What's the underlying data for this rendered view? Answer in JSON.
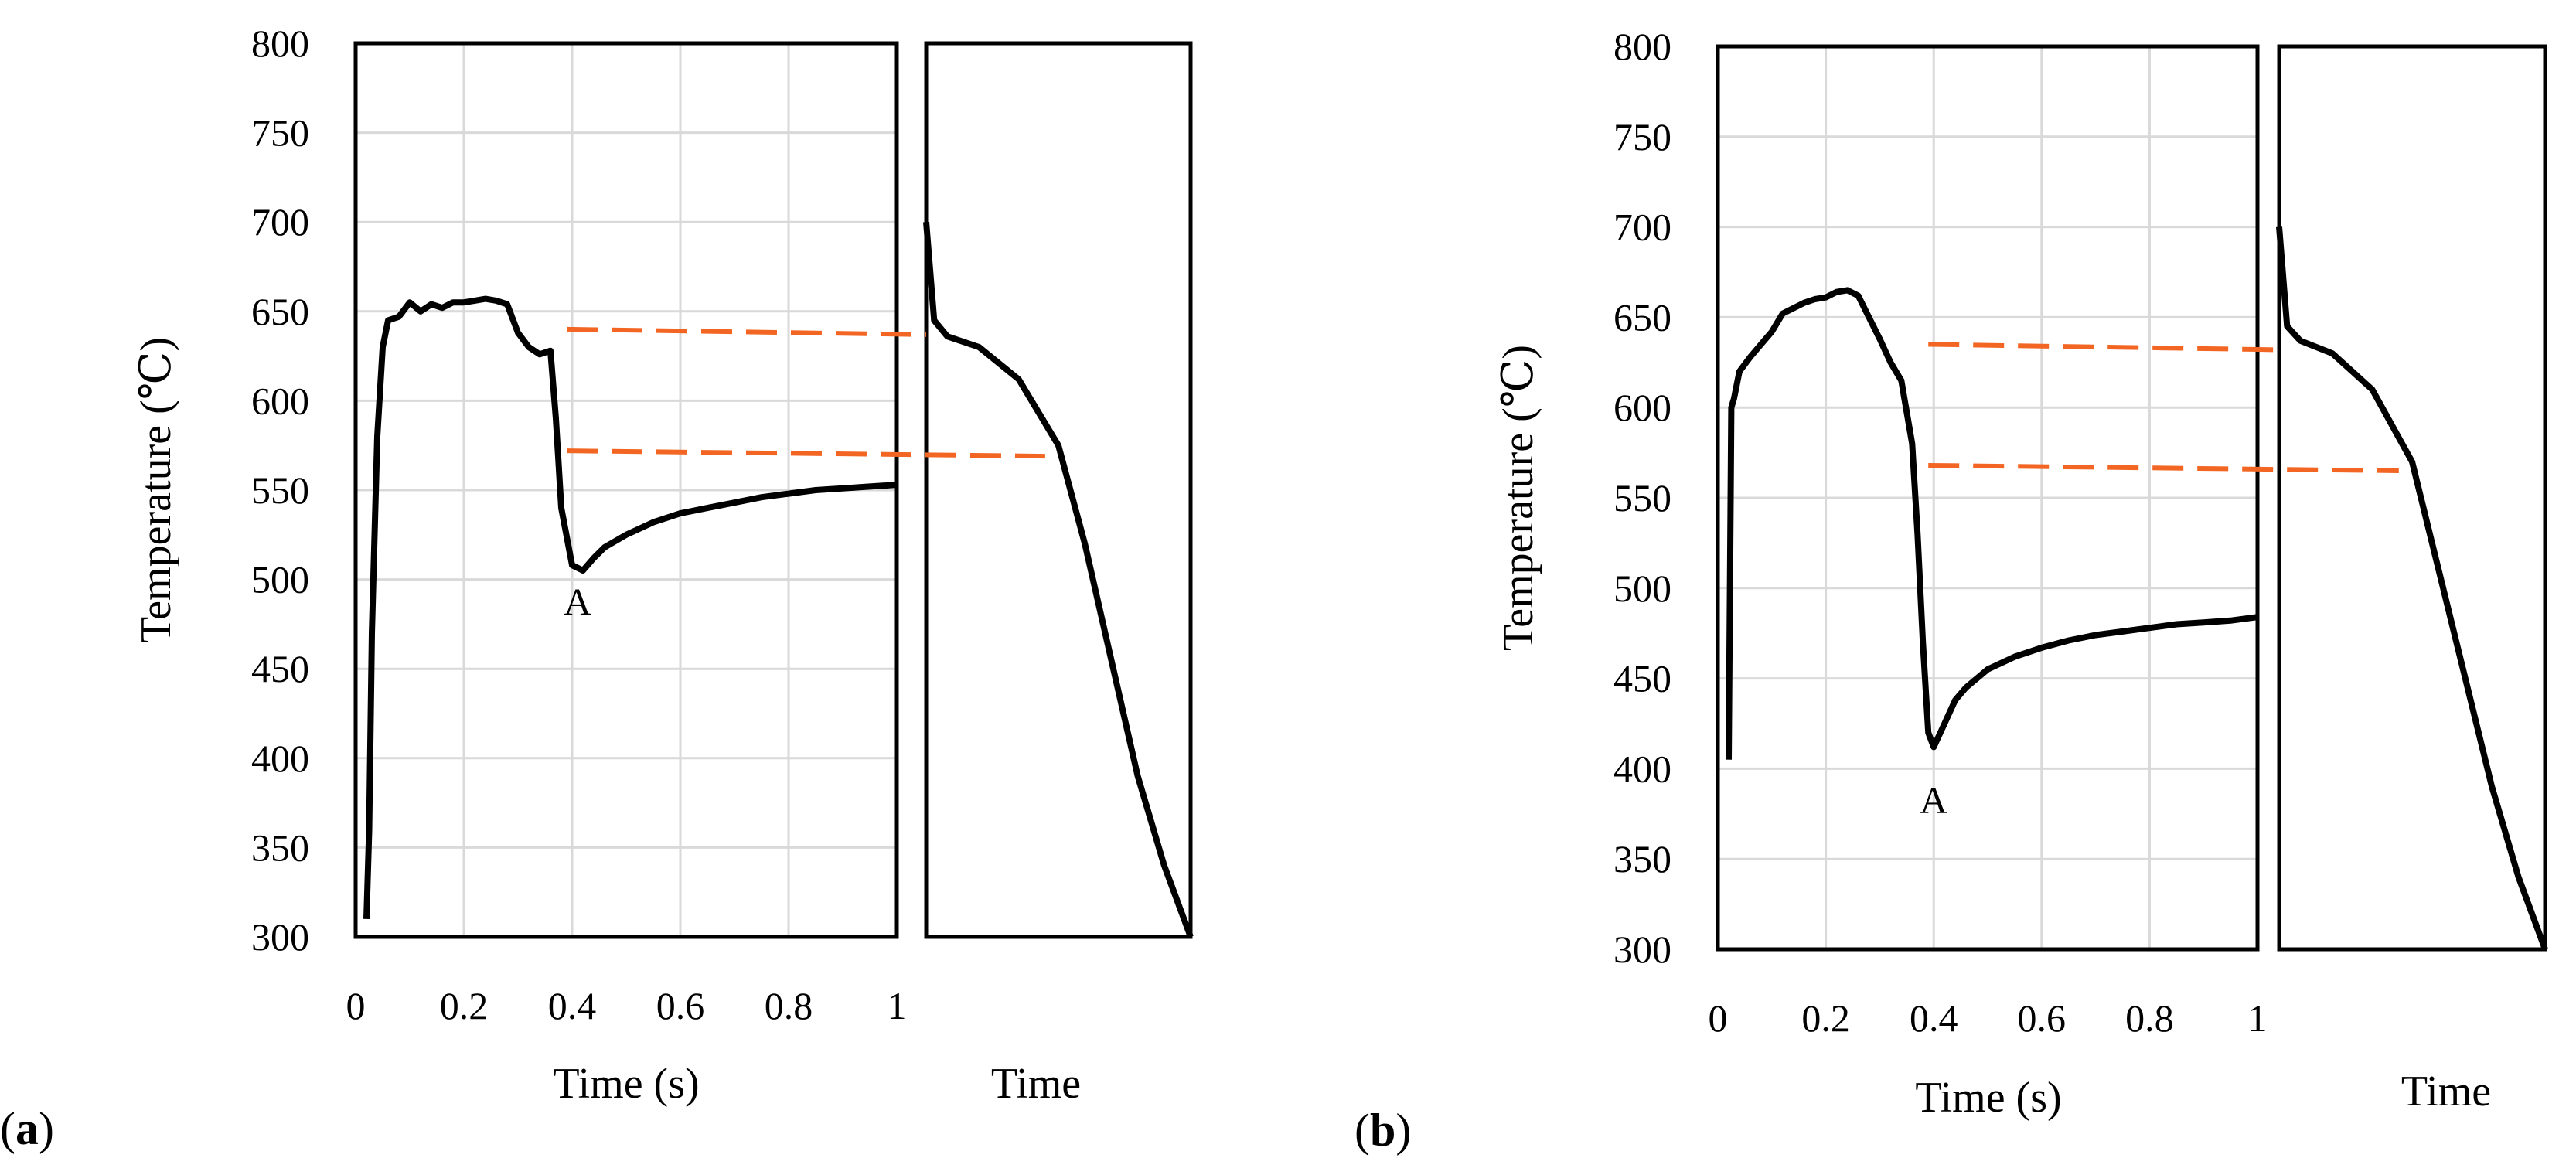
{
  "colors": {
    "line": "#000000",
    "reference": "#F26522",
    "grid": "#D9D9D9",
    "frame": "#000000"
  },
  "chart_data": [
    {
      "panel_label": "a",
      "type": "line",
      "xlabel": "Time (s)",
      "ylabel": "Temperature (℃)",
      "xlim": [
        0,
        1
      ],
      "ylim": [
        300,
        800
      ],
      "x_ticks": [
        "0",
        "0.2",
        "0.4",
        "0.6",
        "0.8",
        "1"
      ],
      "y_ticks": [
        "300",
        "350",
        "400",
        "450",
        "500",
        "550",
        "600",
        "650",
        "700",
        "750",
        "800"
      ],
      "grid": true,
      "series": [
        {
          "name": "temperature",
          "x": [
            0.02,
            0.025,
            0.03,
            0.04,
            0.05,
            0.06,
            0.08,
            0.1,
            0.12,
            0.14,
            0.16,
            0.18,
            0.2,
            0.22,
            0.24,
            0.26,
            0.28,
            0.3,
            0.32,
            0.34,
            0.36,
            0.37,
            0.38,
            0.4,
            0.42,
            0.44,
            0.46,
            0.5,
            0.55,
            0.6,
            0.65,
            0.7,
            0.75,
            0.8,
            0.85,
            0.9,
            0.95,
            1.0
          ],
          "y": [
            310,
            360,
            470,
            580,
            630,
            645,
            647,
            655,
            650,
            654,
            652,
            655,
            655,
            656,
            657,
            656,
            654,
            638,
            630,
            626,
            628,
            590,
            540,
            508,
            505,
            512,
            518,
            525,
            532,
            537,
            540,
            543,
            546,
            548,
            550,
            551,
            552,
            553
          ]
        }
      ],
      "annotations": [
        {
          "text": "A",
          "x": 0.41,
          "y": 488
        }
      ],
      "right_panel": {
        "xlabel": "Time",
        "curve": [
          [
            0.0,
            700
          ],
          [
            0.03,
            645
          ],
          [
            0.08,
            636
          ],
          [
            0.2,
            630
          ],
          [
            0.35,
            612
          ],
          [
            0.5,
            575
          ],
          [
            0.6,
            520
          ],
          [
            0.7,
            455
          ],
          [
            0.8,
            390
          ],
          [
            0.9,
            340
          ],
          [
            1.0,
            300
          ]
        ],
        "reference_lines": [
          {
            "left_y": 640,
            "right_y": 637,
            "start_x": 0.39,
            "end_frac": 0.0
          },
          {
            "left_y": 572,
            "right_y": 569,
            "start_x": 0.39,
            "end_frac": 0.45
          }
        ]
      }
    },
    {
      "panel_label": "b",
      "type": "line",
      "xlabel": "Time (s)",
      "ylabel": "Temperature (℃)",
      "xlim": [
        0,
        1
      ],
      "ylim": [
        300,
        800
      ],
      "x_ticks": [
        "0",
        "0.2",
        "0.4",
        "0.6",
        "0.8",
        "1"
      ],
      "y_ticks": [
        "300",
        "350",
        "400",
        "450",
        "500",
        "550",
        "600",
        "650",
        "700",
        "750",
        "800"
      ],
      "grid": true,
      "series": [
        {
          "name": "temperature",
          "x": [
            0.02,
            0.025,
            0.03,
            0.04,
            0.06,
            0.08,
            0.1,
            0.12,
            0.14,
            0.16,
            0.18,
            0.2,
            0.22,
            0.24,
            0.26,
            0.28,
            0.3,
            0.32,
            0.34,
            0.36,
            0.37,
            0.38,
            0.39,
            0.4,
            0.42,
            0.44,
            0.46,
            0.5,
            0.55,
            0.6,
            0.65,
            0.7,
            0.75,
            0.8,
            0.85,
            0.9,
            0.95,
            1.0
          ],
          "y": [
            405,
            600,
            605,
            620,
            628,
            635,
            642,
            652,
            655,
            658,
            660,
            661,
            664,
            665,
            662,
            650,
            638,
            625,
            615,
            580,
            530,
            470,
            420,
            412,
            425,
            438,
            445,
            455,
            462,
            467,
            471,
            474,
            476,
            478,
            480,
            481,
            482,
            484
          ]
        }
      ],
      "annotations": [
        {
          "text": "A",
          "x": 0.4,
          "y": 383
        }
      ],
      "right_panel": {
        "xlabel": "Time",
        "curve": [
          [
            0.0,
            700
          ],
          [
            0.03,
            645
          ],
          [
            0.08,
            637
          ],
          [
            0.2,
            630
          ],
          [
            0.35,
            610
          ],
          [
            0.5,
            570
          ],
          [
            0.6,
            510
          ],
          [
            0.7,
            450
          ],
          [
            0.8,
            390
          ],
          [
            0.9,
            340
          ],
          [
            1.0,
            300
          ]
        ],
        "reference_lines": [
          {
            "left_y": 635,
            "right_y": 632,
            "start_x": 0.39,
            "end_frac": 0.0
          },
          {
            "left_y": 568,
            "right_y": 565,
            "start_x": 0.39,
            "end_frac": 0.45
          }
        ]
      }
    }
  ]
}
